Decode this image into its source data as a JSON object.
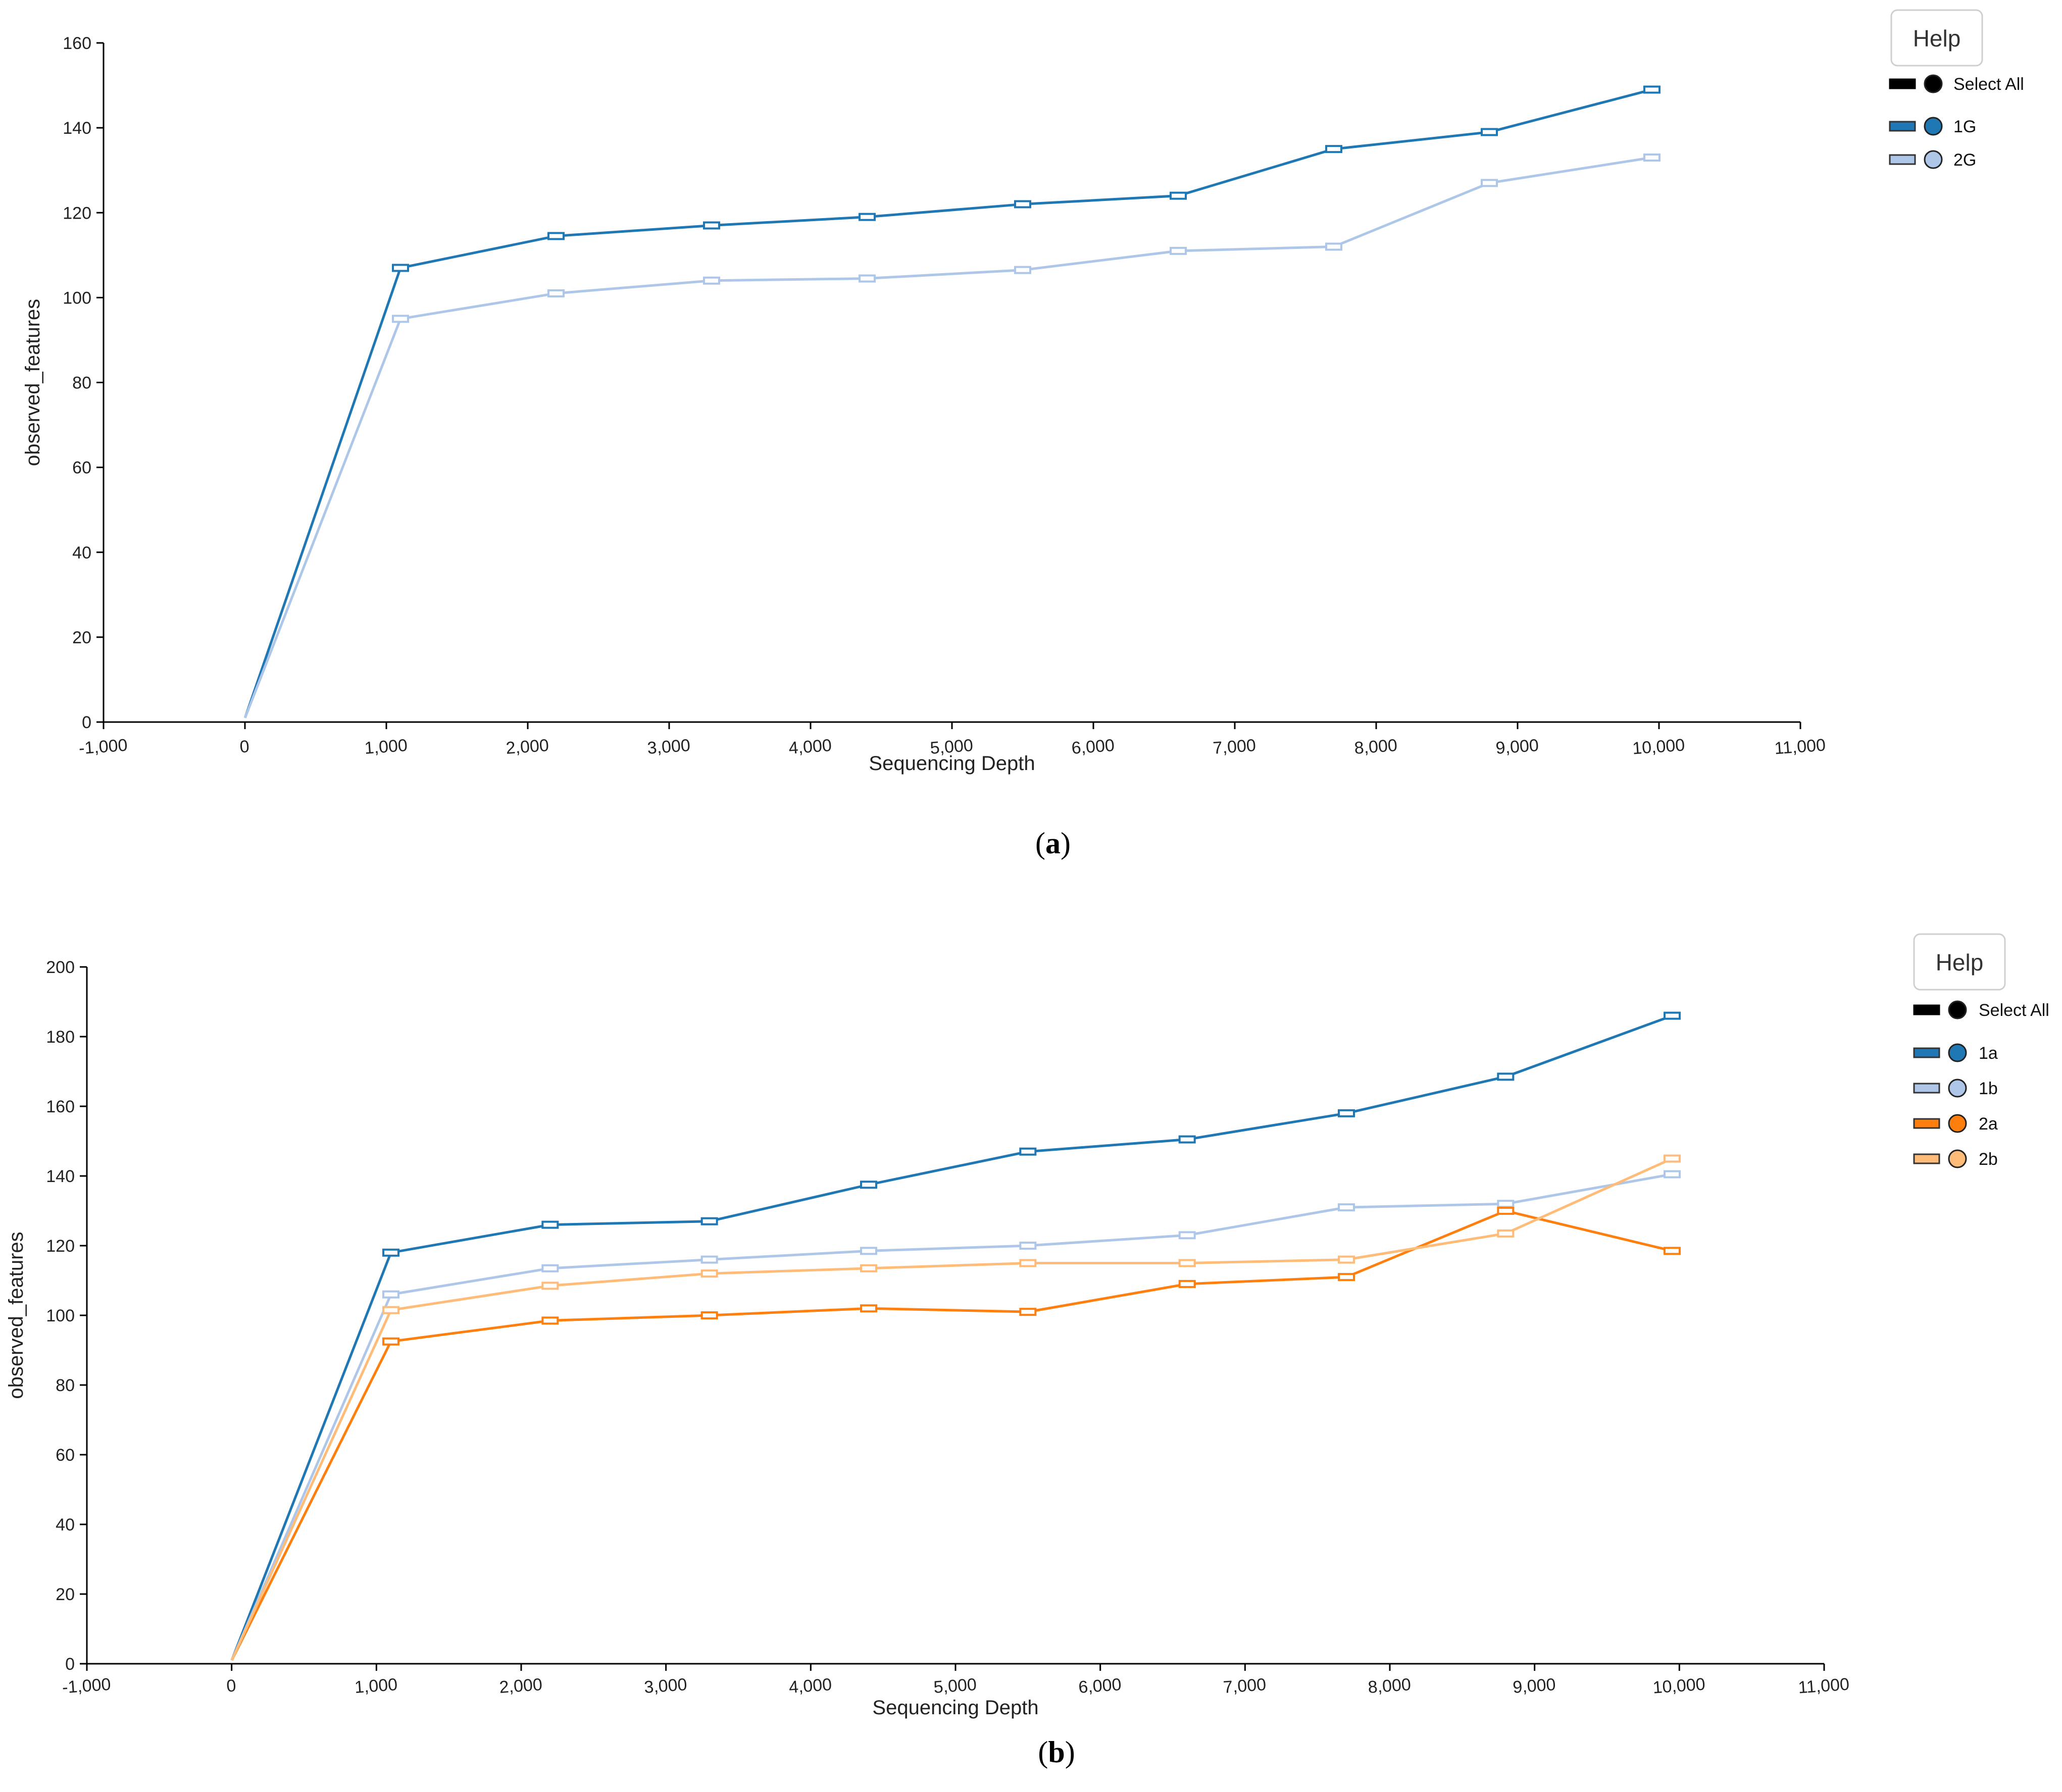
{
  "panels": [
    {
      "label_open": "(",
      "label_letter": "a",
      "label_close": ")",
      "help_label": "Help",
      "legend": {
        "select_all": "Select All",
        "items": [
          {
            "name": "1G",
            "color": "#1f77b4"
          },
          {
            "name": "2G",
            "color": "#aec7e8"
          }
        ]
      }
    },
    {
      "label_open": "(",
      "label_letter": "b",
      "label_close": ")",
      "help_label": "Help",
      "legend": {
        "select_all": "Select All",
        "items": [
          {
            "name": "1a",
            "color": "#1f77b4"
          },
          {
            "name": "1b",
            "color": "#aec7e8"
          },
          {
            "name": "2a",
            "color": "#ff7f0e"
          },
          {
            "name": "2b",
            "color": "#ffbb78"
          }
        ]
      }
    }
  ],
  "chart_data": [
    {
      "type": "line",
      "xlabel": "Sequencing Depth",
      "ylabel": "observed_features",
      "xlim": [
        -1000,
        11000
      ],
      "ylim": [
        0,
        160
      ],
      "x_ticks": [
        -1000,
        0,
        1000,
        2000,
        3000,
        4000,
        5000,
        6000,
        7000,
        8000,
        9000,
        10000,
        11000
      ],
      "x_tick_labels": [
        "-1,000",
        "0",
        "1,000",
        "2,000",
        "3,000",
        "4,000",
        "5,000",
        "6,000",
        "7,000",
        "8,000",
        "9,000",
        "10,000",
        "11,000"
      ],
      "y_ticks": [
        0,
        20,
        40,
        60,
        80,
        100,
        120,
        140,
        160
      ],
      "y_tick_labels": [
        "0",
        "20",
        "40",
        "60",
        "80",
        "100",
        "120",
        "140",
        "160"
      ],
      "x": [
        1,
        1100,
        2200,
        3300,
        4400,
        5500,
        6600,
        7700,
        8800,
        9950
      ],
      "series": [
        {
          "name": "1G",
          "color": "#1f77b4",
          "values": [
            1,
            107,
            114.5,
            117,
            119,
            122,
            124,
            135,
            139,
            149
          ]
        },
        {
          "name": "2G",
          "color": "#aec7e8",
          "values": [
            1,
            95,
            101,
            104,
            104.5,
            106.5,
            111,
            112,
            127,
            133
          ]
        }
      ]
    },
    {
      "type": "line",
      "xlabel": "Sequencing Depth",
      "ylabel": "observed_features",
      "xlim": [
        -1000,
        11000
      ],
      "ylim": [
        0,
        200
      ],
      "x_ticks": [
        -1000,
        0,
        1000,
        2000,
        3000,
        4000,
        5000,
        6000,
        7000,
        8000,
        9000,
        10000,
        11000
      ],
      "x_tick_labels": [
        "-1,000",
        "0",
        "1,000",
        "2,000",
        "3,000",
        "4,000",
        "5,000",
        "6,000",
        "7,000",
        "8,000",
        "9,000",
        "10,000",
        "11,000"
      ],
      "y_ticks": [
        0,
        20,
        40,
        60,
        80,
        100,
        120,
        140,
        160,
        180,
        200
      ],
      "y_tick_labels": [
        "0",
        "20",
        "40",
        "60",
        "80",
        "100",
        "120",
        "140",
        "160",
        "180",
        "200"
      ],
      "x": [
        1,
        1100,
        2200,
        3300,
        4400,
        5500,
        6600,
        7700,
        8800,
        9950
      ],
      "series": [
        {
          "name": "1a",
          "color": "#1f77b4",
          "values": [
            1,
            118,
            126,
            127,
            137.5,
            147,
            150.5,
            158,
            168.5,
            186
          ]
        },
        {
          "name": "1b",
          "color": "#aec7e8",
          "values": [
            1,
            106,
            113.5,
            116,
            118.5,
            120,
            123,
            131,
            132,
            140.5
          ]
        },
        {
          "name": "2a",
          "color": "#ff7f0e",
          "values": [
            1,
            92.5,
            98.5,
            100,
            102,
            101,
            109,
            111,
            130,
            118.5
          ]
        },
        {
          "name": "2b",
          "color": "#ffbb78",
          "values": [
            1,
            101.5,
            108.5,
            112,
            113.5,
            115,
            115,
            116,
            123.5,
            145
          ]
        }
      ]
    }
  ]
}
